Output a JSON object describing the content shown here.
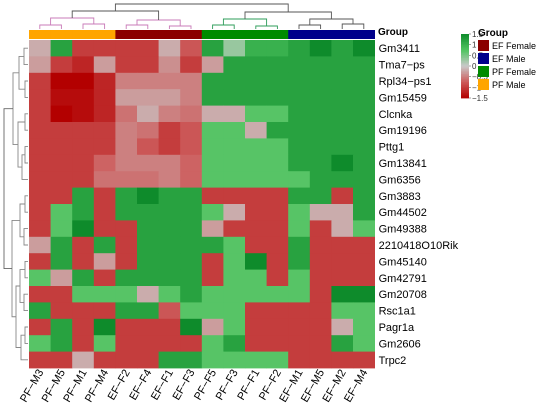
{
  "chart_data": {
    "type": "heatmap",
    "title": "",
    "columns": [
      "PF−M3",
      "PF−M5",
      "PF−M1",
      "PF−M4",
      "EF−F2",
      "EF−F4",
      "EF−F1",
      "EF−F3",
      "PF−F5",
      "PF−F3",
      "PF−F1",
      "PF−F2",
      "EF−M1",
      "EF−M5",
      "EF−M2",
      "EF−M4"
    ],
    "rows": [
      "Gm3411",
      "Tma7−ps",
      "Rpl34−ps1",
      "Gm15459",
      "Clcnka",
      "Gm19196",
      "Pttg1",
      "Gm13841",
      "Gm6356",
      "Gm3883",
      "Gm44502",
      "Gm49388",
      "2210418O10Rik",
      "Gm45140",
      "Gm42791",
      "Gm20708",
      "Rsc1a1",
      "Pagr1a",
      "Gm2606",
      "Trpc2"
    ],
    "group_label": "Group",
    "column_groups": [
      "PF Male",
      "PF Male",
      "PF Male",
      "PF Male",
      "EF Female",
      "EF Female",
      "EF Female",
      "EF Female",
      "PF Female",
      "PF Female",
      "PF Female",
      "PF Female",
      "EF Male",
      "EF Male",
      "EF Male",
      "EF Male"
    ],
    "values": [
      [
        -0.2,
        1.2,
        -1.0,
        -1.0,
        -1.0,
        -1.0,
        -0.2,
        -0.8,
        1.2,
        0.3,
        1.0,
        1.0,
        1.2,
        1.5,
        1.2,
        1.5
      ],
      [
        -0.3,
        -1.0,
        -1.2,
        -0.3,
        -1.0,
        -1.0,
        -0.4,
        -1.0,
        -0.3,
        1.2,
        1.2,
        1.2,
        1.2,
        1.2,
        1.2,
        1.2
      ],
      [
        -1.0,
        -1.6,
        -1.6,
        -1.2,
        -0.5,
        -0.5,
        -0.5,
        -0.5,
        1.2,
        1.2,
        1.2,
        1.2,
        1.2,
        1.2,
        1.2,
        1.2
      ],
      [
        -1.0,
        -1.4,
        -1.4,
        -1.2,
        -0.3,
        -0.3,
        -0.3,
        -0.5,
        1.2,
        1.2,
        1.2,
        1.2,
        1.2,
        1.2,
        1.2,
        1.2
      ],
      [
        -1.0,
        -1.6,
        -1.4,
        -1.2,
        -0.6,
        -0.2,
        -0.5,
        -0.6,
        -0.2,
        -0.2,
        0.7,
        0.7,
        1.2,
        1.2,
        1.2,
        1.2
      ],
      [
        -1.0,
        -1.0,
        -1.0,
        -1.0,
        -0.5,
        -0.6,
        -1.0,
        -0.8,
        0.7,
        0.7,
        -0.2,
        1.2,
        1.2,
        1.2,
        1.2,
        1.2
      ],
      [
        -1.0,
        -1.0,
        -1.0,
        -1.0,
        -0.5,
        -0.8,
        -1.0,
        -0.8,
        0.7,
        0.7,
        0.7,
        0.7,
        1.2,
        1.2,
        1.2,
        1.2
      ],
      [
        -1.0,
        -1.0,
        -1.0,
        -0.7,
        -0.5,
        -0.5,
        -0.5,
        -0.7,
        0.7,
        0.7,
        0.7,
        0.7,
        1.2,
        1.2,
        1.5,
        1.2
      ],
      [
        -1.0,
        -1.0,
        -1.0,
        -0.6,
        -0.6,
        -0.6,
        -0.5,
        -0.7,
        0.7,
        0.7,
        0.7,
        0.7,
        0.7,
        1.2,
        1.2,
        1.2
      ],
      [
        -1.0,
        -1.0,
        1.2,
        -1.0,
        1.2,
        1.5,
        1.2,
        1.2,
        -1.0,
        -1.0,
        -1.0,
        -1.0,
        1.2,
        1.2,
        -1.0,
        1.2
      ],
      [
        -1.0,
        0.7,
        1.2,
        -1.0,
        1.2,
        1.2,
        1.2,
        1.2,
        0.7,
        -0.2,
        -1.0,
        -1.0,
        0.7,
        -0.2,
        -0.2,
        1.2
      ],
      [
        -1.0,
        0.7,
        1.5,
        -1.0,
        -1.0,
        1.2,
        1.2,
        1.2,
        -0.3,
        -1.0,
        -1.0,
        -1.0,
        0.7,
        -1.0,
        -0.2,
        0.7
      ],
      [
        -0.3,
        1.2,
        -1.0,
        1.2,
        -1.0,
        1.2,
        1.2,
        1.2,
        1.2,
        0.7,
        -1.0,
        -1.0,
        1.2,
        -1.0,
        -1.0,
        -1.0
      ],
      [
        -1.0,
        1.2,
        -1.0,
        -0.3,
        -1.0,
        1.2,
        1.2,
        1.2,
        -1.0,
        0.7,
        1.5,
        -1.0,
        1.2,
        -1.0,
        -1.0,
        -1.0
      ],
      [
        0.7,
        -0.3,
        1.2,
        -1.0,
        1.2,
        1.2,
        1.2,
        1.2,
        -1.0,
        0.7,
        0.7,
        -1.0,
        0.7,
        -1.0,
        -1.0,
        -1.0
      ],
      [
        -1.0,
        -1.0,
        0.7,
        0.7,
        0.7,
        -0.2,
        0.7,
        1.2,
        0.7,
        0.7,
        0.7,
        0.7,
        0.7,
        -1.0,
        1.5,
        1.5
      ],
      [
        1.2,
        -1.0,
        -1.0,
        -1.0,
        1.2,
        1.2,
        -0.8,
        0.7,
        0.7,
        0.7,
        -1.0,
        -1.0,
        -1.0,
        -1.0,
        0.7,
        0.7
      ],
      [
        -1.0,
        1.2,
        -1.0,
        1.5,
        -1.0,
        -1.0,
        -1.0,
        1.5,
        -0.3,
        0.7,
        -1.0,
        -1.0,
        -1.0,
        -1.0,
        -0.2,
        0.7
      ],
      [
        0.7,
        1.2,
        -1.0,
        0.7,
        -1.0,
        -1.0,
        -1.0,
        -1.0,
        0.7,
        1.2,
        -1.0,
        -1.0,
        -1.0,
        -1.0,
        1.2,
        0.7
      ],
      [
        -1.0,
        -1.0,
        -0.2,
        -1.0,
        -1.0,
        -1.0,
        1.2,
        1.2,
        0.7,
        0.7,
        0.7,
        0.7,
        -1.0,
        -1.0,
        -1.0,
        -1.0
      ]
    ],
    "colorbar": {
      "min": -1.5,
      "max": 1.5,
      "ticks": [
        1.5,
        1,
        0.5,
        0,
        -0.5,
        -1,
        -1.5
      ],
      "tick_labels": [
        "1.5",
        "1",
        "0.5",
        "0",
        "−0.5",
        "−1",
        "−1.5"
      ],
      "colors": [
        "#b30000",
        "#cd5c5c",
        "#c9c9c9",
        "#4fc45f",
        "#0e8b2b"
      ]
    },
    "legend": {
      "title": "Group",
      "placement": "right",
      "items": [
        {
          "label": "EF Female",
          "color": "#8b0000"
        },
        {
          "label": "EF Male",
          "color": "#00008b"
        },
        {
          "label": "PF Female",
          "color": "#008b00"
        },
        {
          "label": "PF Male",
          "color": "#ffa500"
        }
      ]
    }
  }
}
